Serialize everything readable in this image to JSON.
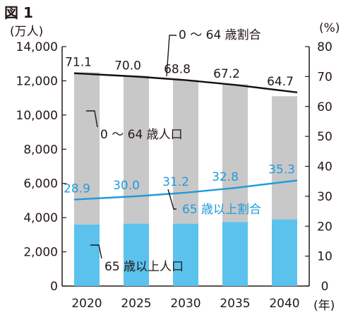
{
  "figure_title": "図 1",
  "units": {
    "left": "(万人)",
    "right": "(%)",
    "x": "(年)"
  },
  "colors": {
    "young": "#c8c8c8",
    "elderly": "#5bc2ee",
    "young_line": "#111111",
    "elderly_line": "#1f9bdc",
    "text": "#231815",
    "axis": "#231815"
  },
  "chart_data": {
    "type": "bar",
    "stacked": true,
    "categories": [
      "2020",
      "2025",
      "2030",
      "2035",
      "2040"
    ],
    "series": [
      {
        "name": "65 歳以上人口",
        "values": [
          3600,
          3650,
          3650,
          3750,
          3900
        ]
      },
      {
        "name": "0 ～ 64 歳人口",
        "values": [
          8900,
          8650,
          8400,
          8050,
          7200
        ]
      }
    ],
    "line_series": [
      {
        "name": "0 ～ 64 歳割合",
        "axis": "right",
        "values": [
          71.1,
          70.0,
          68.8,
          67.2,
          64.7
        ]
      },
      {
        "name": "65 歳以上割合",
        "axis": "right",
        "values": [
          28.9,
          30.0,
          31.2,
          32.8,
          35.3
        ]
      }
    ],
    "y_left": {
      "range": [
        0,
        14000
      ],
      "ticks": [
        "0",
        "2,000",
        "4,000",
        "6,000",
        "8,000",
        "10,000",
        "12,000",
        "14,000"
      ]
    },
    "y_right": {
      "range": [
        0,
        80
      ],
      "ticks": [
        "0",
        "10",
        "20",
        "30",
        "40",
        "50",
        "60",
        "70",
        "80"
      ]
    },
    "grid": false
  }
}
